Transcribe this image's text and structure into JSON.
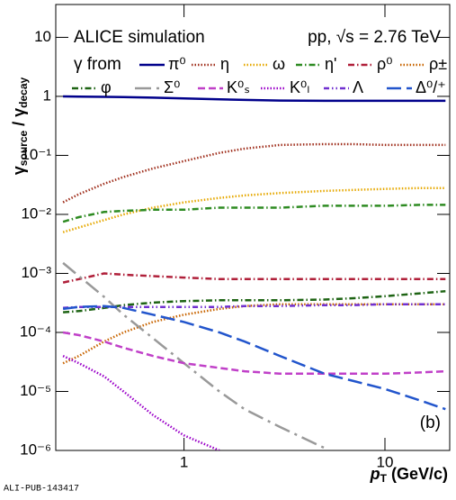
{
  "chart_data": {
    "type": "line",
    "annotations": [
      "ALICE simulation",
      "pp, √s = 2.76 TeV",
      "γ from",
      "(b)"
    ],
    "footer": "ALI-PUB-143417",
    "xlabel": [
      "p",
      "T",
      " (GeV/c)"
    ],
    "ylabel": [
      "γ",
      "source",
      " / γ",
      "decay"
    ],
    "xlog": true,
    "ylog": true,
    "xlim": [
      0.23,
      21
    ],
    "ylim": [
      1e-06,
      36
    ],
    "xticks": [
      1,
      10
    ],
    "yticks": [
      {
        "value": 1e-06,
        "label": "10⁻⁶"
      },
      {
        "value": 1e-05,
        "label": "10⁻⁵"
      },
      {
        "value": 0.0001,
        "label": "10⁻⁴"
      },
      {
        "value": 0.001,
        "label": "10⁻³"
      },
      {
        "value": 0.01,
        "label": "10⁻²"
      },
      {
        "value": 0.1,
        "label": "10⁻¹"
      },
      1,
      10
    ],
    "x": [
      0.25,
      0.3,
      0.4,
      0.5,
      0.7,
      1,
      1.5,
      2,
      3,
      5,
      7,
      10,
      15,
      20
    ],
    "series": [
      {
        "name": "π⁰",
        "color": "#00008b",
        "style": "solid",
        "values": [
          1.0,
          0.99,
          0.98,
          0.97,
          0.95,
          0.92,
          0.89,
          0.87,
          0.85,
          0.84,
          0.84,
          0.84,
          0.84,
          0.84
        ]
      },
      {
        "name": "η",
        "color": "#a0301e",
        "style": "dotted",
        "values": [
          0.016,
          0.022,
          0.033,
          0.043,
          0.06,
          0.08,
          0.11,
          0.13,
          0.15,
          0.155,
          0.155,
          0.15,
          0.15,
          0.15
        ]
      },
      {
        "name": "ω",
        "color": "#e6a800",
        "style": "dotted",
        "values": [
          0.005,
          0.006,
          0.008,
          0.01,
          0.013,
          0.016,
          0.019,
          0.021,
          0.023,
          0.025,
          0.026,
          0.027,
          0.028,
          0.028
        ]
      },
      {
        "name": "η'",
        "color": "#2e8b22",
        "style": "dashdot",
        "values": [
          0.0075,
          0.009,
          0.011,
          0.0115,
          0.012,
          0.012,
          0.013,
          0.013,
          0.013,
          0.014,
          0.014,
          0.014,
          0.0145,
          0.0145
        ]
      },
      {
        "name": "ρ⁰",
        "color": "#b0203a",
        "style": "dashdot",
        "values": [
          0.0007,
          0.0008,
          0.001,
          0.00095,
          0.0009,
          0.00085,
          0.0008,
          0.0008,
          0.0008,
          0.0008,
          0.0008,
          0.0008,
          0.0008,
          0.0008
        ]
      },
      {
        "name": "ρ±",
        "color": "#c86400",
        "style": "dotted",
        "values": [
          3e-05,
          4e-05,
          7e-05,
          0.0001,
          0.00015,
          0.0002,
          0.00025,
          0.00028,
          0.0003,
          0.0003,
          0.0003,
          0.0003,
          0.0003,
          0.0003
        ]
      },
      {
        "name": "φ",
        "color": "#1e6414",
        "style": "dashdot",
        "values": [
          0.00022,
          0.00023,
          0.00026,
          0.00029,
          0.00032,
          0.00034,
          0.00035,
          0.00035,
          0.00035,
          0.00036,
          0.00038,
          0.00041,
          0.00046,
          0.0005
        ]
      },
      {
        "name": "Σ⁰",
        "color": "#999999",
        "style": "longdashdot",
        "values": [
          0.0015,
          0.0009,
          0.0004,
          0.0002,
          8e-05,
          3e-05,
          1e-05,
          5e-06,
          2.5e-06,
          1.1e-06,
          null,
          null,
          null,
          null
        ]
      },
      {
        "name": "K⁰ₛ",
        "color": "#c040c8",
        "style": "dashed",
        "values": [
          0.0001,
          9e-05,
          7e-05,
          5.5e-05,
          4e-05,
          3e-05,
          2.5e-05,
          2.2e-05,
          2e-05,
          2e-05,
          2e-05,
          2e-05,
          2.1e-05,
          2.2e-05
        ]
      },
      {
        "name": "K⁰ₗ",
        "color": "#9a00c8",
        "style": "dotted",
        "values": [
          4e-05,
          3e-05,
          1.8e-05,
          1e-05,
          4e-06,
          1.8e-06,
          1e-06,
          null,
          null,
          null,
          null,
          null,
          null,
          null
        ]
      },
      {
        "name": "Λ",
        "color": "#7030d0",
        "style": "dashdotdot",
        "values": [
          0.00026,
          0.00027,
          0.00027,
          0.00027,
          0.00027,
          0.00027,
          0.00027,
          0.00028,
          0.00028,
          0.00029,
          0.00029,
          0.0003,
          0.0003,
          0.0003
        ]
      },
      {
        "name": "Δ⁰/⁺",
        "color": "#2255cc",
        "style": "longdash",
        "values": [
          0.00025,
          0.00027,
          0.00028,
          0.00026,
          0.0002,
          0.00015,
          0.0001,
          7e-05,
          4e-05,
          2e-05,
          1.5e-05,
          1.1e-05,
          7e-06,
          5e-06
        ]
      }
    ]
  }
}
